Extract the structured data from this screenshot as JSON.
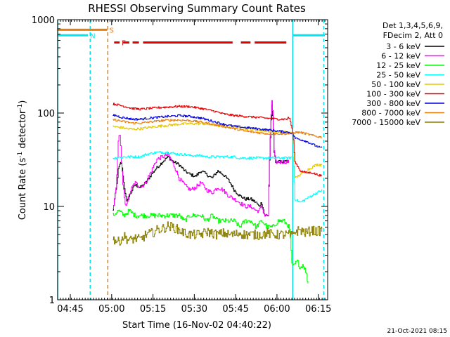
{
  "chart_data": {
    "type": "line",
    "title": "RHESSI Observing Summary Count Rates",
    "xlabel": "Start Time (16-Nov-02 04:40:22)",
    "ylabel": "Count Rate (s⁻¹ detector⁻¹)",
    "footer": "21-Oct-2021 08:15",
    "y_scale": "log",
    "ylim": [
      1,
      1000
    ],
    "y_ticks": [
      {
        "value": 1,
        "label": "1"
      },
      {
        "value": 10,
        "label": "10"
      },
      {
        "value": 100,
        "label": "100"
      },
      {
        "value": 1000,
        "label": "1000"
      }
    ],
    "x_unit": "minutes after 04:40:22",
    "xlim": [
      0,
      98
    ],
    "x_ticks": [
      {
        "value": 4.6,
        "label": "04:45"
      },
      {
        "value": 19.6,
        "label": "05:00"
      },
      {
        "value": 34.6,
        "label": "05:15"
      },
      {
        "value": 49.6,
        "label": "05:30"
      },
      {
        "value": 64.6,
        "label": "05:45"
      },
      {
        "value": 79.6,
        "label": "06:00"
      },
      {
        "value": 94.6,
        "label": "06:15"
      }
    ],
    "legend_header": [
      "Det 1,3,4,5,6,9,",
      "FDecim 2, Att 0"
    ],
    "legend_position": "right",
    "vertical_markers": [
      {
        "x": 0,
        "color": "#00e5ee",
        "style": "solid"
      },
      {
        "x": 11.8,
        "color": "#00e5ee",
        "style": "dashed"
      },
      {
        "x": 18.2,
        "color": "#e87e0c",
        "style": "dashed"
      },
      {
        "x": 85.3,
        "color": "#00e5ee",
        "style": "solid"
      },
      {
        "x": 96.6,
        "color": "#00e5ee",
        "style": "dashed"
      }
    ],
    "flags": [
      {
        "label": "S",
        "color": "#e87e0c",
        "y": 780,
        "segments": [
          [
            0,
            18
          ]
        ]
      },
      {
        "label": "N",
        "color": "#00e5ee",
        "y": 680,
        "segments": [
          [
            0,
            11
          ],
          [
            85.3,
            97
          ]
        ]
      },
      {
        "label": "F",
        "color": "#e00000",
        "y": 570,
        "segments": [
          [
            20.5,
            22.5
          ],
          [
            23.8,
            26
          ],
          [
            27.2,
            29.5
          ],
          [
            31,
            63.5
          ],
          [
            66.5,
            70
          ],
          [
            71.5,
            83
          ]
        ]
      }
    ],
    "series": [
      {
        "name": "3 - 6 keV",
        "color": "#000000",
        "noise": 0.04,
        "x": [
          20,
          20.6,
          21.3,
          22,
          23,
          24,
          25,
          26.5,
          28,
          30,
          32,
          34,
          36,
          38,
          40,
          42,
          44,
          46,
          48,
          50,
          52,
          54,
          56,
          58,
          60,
          62,
          64,
          66,
          68,
          70,
          72,
          73,
          74,
          75,
          76.4,
          77,
          77.7,
          78.4,
          79,
          80,
          81,
          82,
          83,
          84
        ],
        "y": [
          9,
          12,
          16,
          25,
          30,
          17,
          11,
          14,
          17,
          16,
          18,
          22,
          26,
          30,
          34,
          30,
          28,
          24,
          22,
          21,
          24,
          22,
          20,
          24,
          22,
          19,
          15,
          13,
          12,
          12,
          11,
          10,
          11,
          8,
          8,
          40,
          120,
          40,
          30,
          30,
          30,
          30,
          30,
          30
        ]
      },
      {
        "name": "6 - 12 keV",
        "color": "#ff00ff",
        "noise": 0.05,
        "x": [
          20,
          20.6,
          21.3,
          22,
          22.5,
          23,
          23.6,
          24.5,
          25.5,
          26.5,
          28,
          30,
          32,
          34,
          36,
          38,
          40,
          42,
          44,
          46,
          48,
          50,
          52,
          54,
          56,
          58,
          60,
          62,
          64,
          66,
          68,
          70,
          72,
          73,
          74,
          75,
          76.4,
          77,
          77.7,
          78.4,
          79,
          80,
          82,
          84
        ],
        "y": [
          9,
          12,
          17,
          50,
          62,
          32,
          17,
          10,
          12,
          15,
          18,
          16,
          18,
          24,
          32,
          34,
          36,
          28,
          20,
          17,
          15,
          16,
          18,
          15,
          14,
          16,
          15,
          13,
          12,
          11,
          10,
          10,
          9,
          9,
          10,
          8,
          8,
          40,
          140,
          40,
          30,
          30,
          30,
          30
        ]
      },
      {
        "name": "12 - 25 keV",
        "color": "#00ff00",
        "noise": 0.06,
        "x": [
          20,
          22,
          24,
          26,
          28,
          30,
          32,
          34,
          36,
          38,
          40,
          42,
          44,
          46,
          48,
          50,
          52,
          54,
          56,
          58,
          60,
          62,
          64,
          66,
          68,
          70,
          72,
          74,
          76,
          78,
          80,
          82,
          84,
          85,
          86,
          87,
          88,
          89,
          90,
          91
        ],
        "y": [
          8,
          9,
          8,
          9,
          8,
          8,
          8,
          8,
          8,
          8,
          8,
          8,
          8,
          7,
          8,
          8,
          8,
          7,
          8,
          7,
          7,
          7,
          7,
          6,
          7,
          7,
          6,
          7,
          6,
          6,
          7,
          7,
          6,
          2.2,
          2.4,
          2.6,
          2.2,
          2.4,
          2.0,
          1.4
        ]
      },
      {
        "name": "25 - 50 keV",
        "color": "#00ffff",
        "noise": 0.03,
        "x": [
          20,
          21,
          22,
          23,
          24,
          26,
          28,
          30,
          32,
          34,
          36,
          38,
          40,
          42,
          44,
          46,
          48,
          50,
          52,
          54,
          56,
          58,
          60,
          62,
          64,
          66,
          68,
          70,
          72,
          74,
          76,
          78,
          80,
          82,
          84,
          85.3,
          86,
          88,
          90,
          92,
          94,
          96
        ],
        "y": [
          33,
          33,
          34,
          33,
          34,
          34,
          34,
          34,
          36,
          37,
          38,
          38,
          38,
          37,
          36,
          36,
          35,
          35,
          35,
          34,
          34,
          34,
          34,
          34,
          34,
          33,
          33,
          33,
          33,
          33,
          33,
          33,
          33,
          33,
          33,
          34,
          12,
          11,
          12,
          13,
          14,
          15
        ]
      },
      {
        "name": "50 - 100 keV",
        "color": "#e6c800",
        "noise": 0.03,
        "x": [
          20,
          21,
          23,
          25,
          27,
          30,
          33,
          36,
          40,
          44,
          48,
          52,
          56,
          60,
          64,
          68,
          72,
          76,
          80,
          84,
          85.3,
          86,
          88,
          90,
          92,
          94,
          96
        ],
        "y": [
          72,
          71,
          70,
          68,
          67,
          68,
          70,
          72,
          74,
          76,
          77,
          77,
          75,
          72,
          70,
          68,
          66,
          64,
          63,
          62,
          60,
          20,
          22,
          24,
          26,
          28,
          28
        ]
      },
      {
        "name": "100 - 300 keV",
        "color": "#e00000",
        "noise": 0.025,
        "x": [
          20,
          21,
          23,
          25,
          27,
          30,
          33,
          36,
          40,
          44,
          48,
          52,
          56,
          60,
          64,
          68,
          72,
          76,
          80,
          83,
          84,
          85.3,
          86,
          88,
          90,
          92,
          94,
          96
        ],
        "y": [
          125,
          124,
          120,
          116,
          112,
          110,
          112,
          114,
          116,
          118,
          117,
          112,
          106,
          98,
          94,
          92,
          90,
          88,
          86,
          86,
          90,
          60,
          30,
          24,
          23,
          23,
          22,
          21
        ]
      },
      {
        "name": "300 - 800 keV",
        "color": "#0000dd",
        "noise": 0.025,
        "x": [
          20,
          21,
          23,
          25,
          27,
          30,
          33,
          36,
          40,
          44,
          48,
          52,
          56,
          60,
          64,
          68,
          72,
          76,
          80,
          84,
          85.3,
          86,
          88,
          90,
          92,
          94,
          96
        ],
        "y": [
          95,
          94,
          90,
          88,
          86,
          86,
          88,
          90,
          92,
          94,
          92,
          88,
          82,
          76,
          72,
          70,
          68,
          66,
          64,
          62,
          60,
          54,
          52,
          50,
          47,
          44,
          42
        ]
      },
      {
        "name": "800 - 7000 keV",
        "color": "#e87e0c",
        "noise": 0.025,
        "x": [
          20,
          21,
          23,
          25,
          27,
          30,
          33,
          36,
          40,
          44,
          48,
          52,
          56,
          60,
          64,
          68,
          72,
          76,
          80,
          84,
          85.3,
          86,
          88,
          90,
          92,
          94,
          96
        ],
        "y": [
          85,
          84,
          82,
          80,
          78,
          78,
          80,
          82,
          84,
          84,
          83,
          80,
          76,
          72,
          68,
          64,
          62,
          60,
          60,
          60,
          61,
          62,
          62,
          60,
          58,
          56,
          55
        ]
      },
      {
        "name": "7000 - 15000 keV",
        "color": "#8b7f00",
        "noise": 0.12,
        "x": [
          20,
          22,
          24,
          26,
          28,
          30,
          32,
          34,
          36,
          38,
          40,
          42,
          44,
          46,
          48,
          50,
          52,
          54,
          56,
          58,
          60,
          62,
          64,
          66,
          68,
          70,
          72,
          74,
          76,
          78,
          80,
          82,
          84,
          85,
          86,
          88,
          90,
          92,
          94,
          96
        ],
        "y": [
          4.5,
          4.2,
          4.8,
          4.3,
          4.6,
          4.4,
          5.0,
          5.2,
          5.6,
          5.8,
          6.2,
          6.0,
          5.6,
          5.2,
          5.0,
          5.0,
          5.0,
          5.4,
          5.2,
          5.0,
          5.2,
          5.0,
          5.0,
          5.2,
          5.0,
          5.0,
          5.0,
          5.0,
          5.2,
          5.0,
          5.0,
          5.0,
          5.0,
          4.8,
          5.4,
          5.6,
          5.2,
          5.6,
          5.4,
          5.6
        ]
      }
    ]
  }
}
